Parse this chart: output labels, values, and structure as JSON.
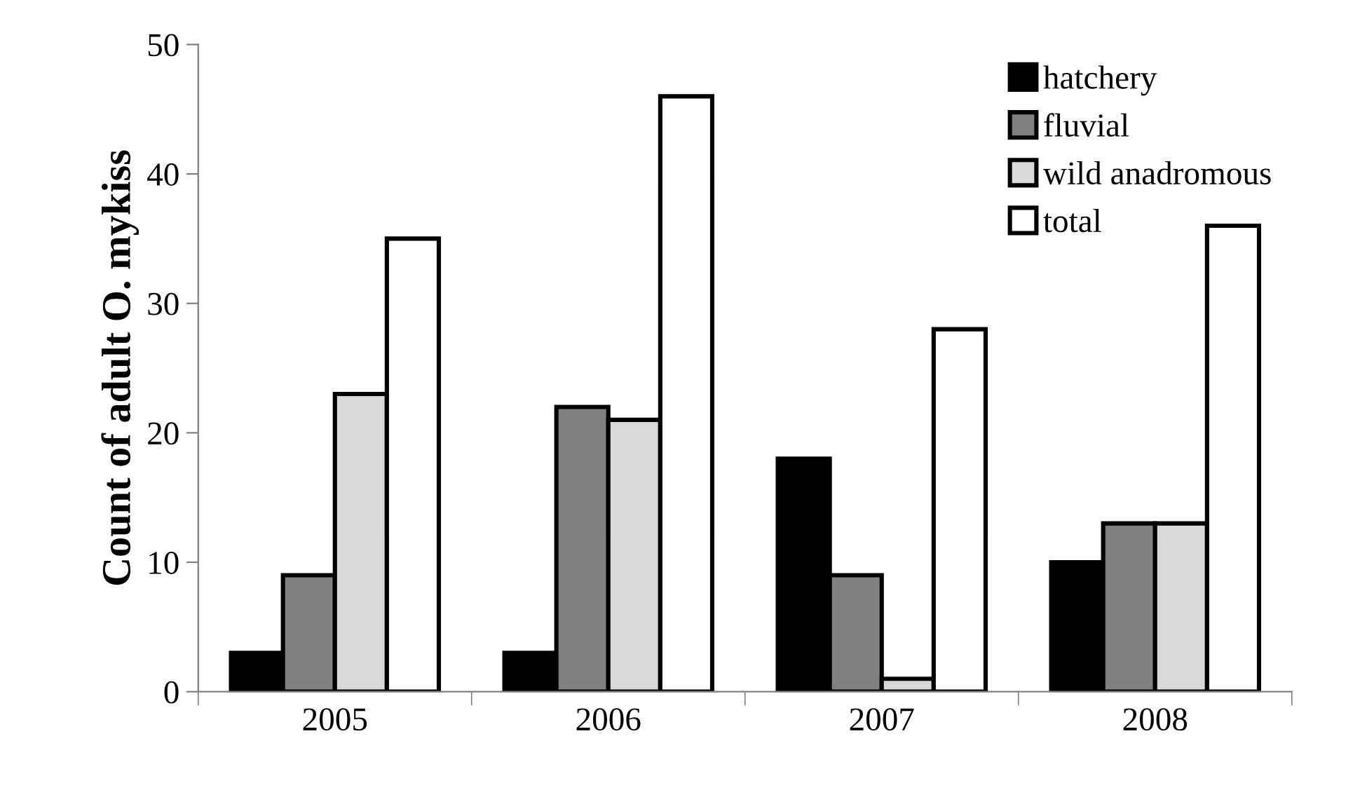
{
  "chart_data": {
    "type": "bar",
    "ylabel": "Count of adult O. mykiss",
    "categories": [
      "2005",
      "2006",
      "2007",
      "2008"
    ],
    "series": [
      {
        "name": "hatchery",
        "color": "#000000",
        "values": [
          3,
          3,
          18,
          10
        ]
      },
      {
        "name": "fluvial",
        "color": "#808080",
        "values": [
          9,
          22,
          9,
          13
        ]
      },
      {
        "name": "wild anadromous",
        "color": "#d9d9d9",
        "values": [
          23,
          21,
          1,
          13
        ]
      },
      {
        "name": "total",
        "color": "#ffffff",
        "values": [
          35,
          46,
          28,
          36
        ]
      }
    ],
    "ylim": [
      0,
      50
    ],
    "yticks": [
      0,
      10,
      20,
      30,
      40,
      50
    ],
    "grid": false,
    "legend": "top right"
  }
}
